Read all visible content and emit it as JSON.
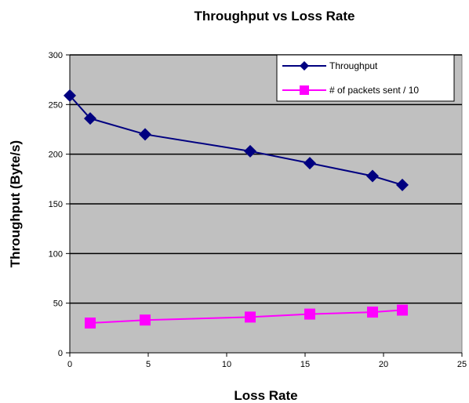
{
  "chart_data": {
    "type": "line",
    "title": "Throughput vs Loss Rate",
    "xlabel": "Loss Rate",
    "ylabel": "Throughput (Byte/s)",
    "xlim": [
      0,
      25
    ],
    "ylim": [
      0,
      300
    ],
    "xticks": [
      "0",
      "5",
      "10",
      "15",
      "20",
      "25"
    ],
    "yticks": [
      "0",
      "50",
      "100",
      "150",
      "200",
      "250",
      "300"
    ],
    "grid": "horizontal",
    "plot_background": "#c0c0c0",
    "legend_position": "top-right",
    "series": [
      {
        "name": "Throughput",
        "color": "#000080",
        "marker": "diamond",
        "x": [
          0,
          1.3,
          4.8,
          11.5,
          15.3,
          19.3,
          21.2
        ],
        "y": [
          259,
          236,
          220,
          203,
          191,
          178,
          169
        ]
      },
      {
        "name": "# of packets sent / 10",
        "color": "#ff00ff",
        "marker": "square",
        "x": [
          1.3,
          4.8,
          11.5,
          15.3,
          19.3,
          21.2
        ],
        "y": [
          30,
          33,
          36,
          39,
          41,
          43
        ]
      }
    ]
  }
}
